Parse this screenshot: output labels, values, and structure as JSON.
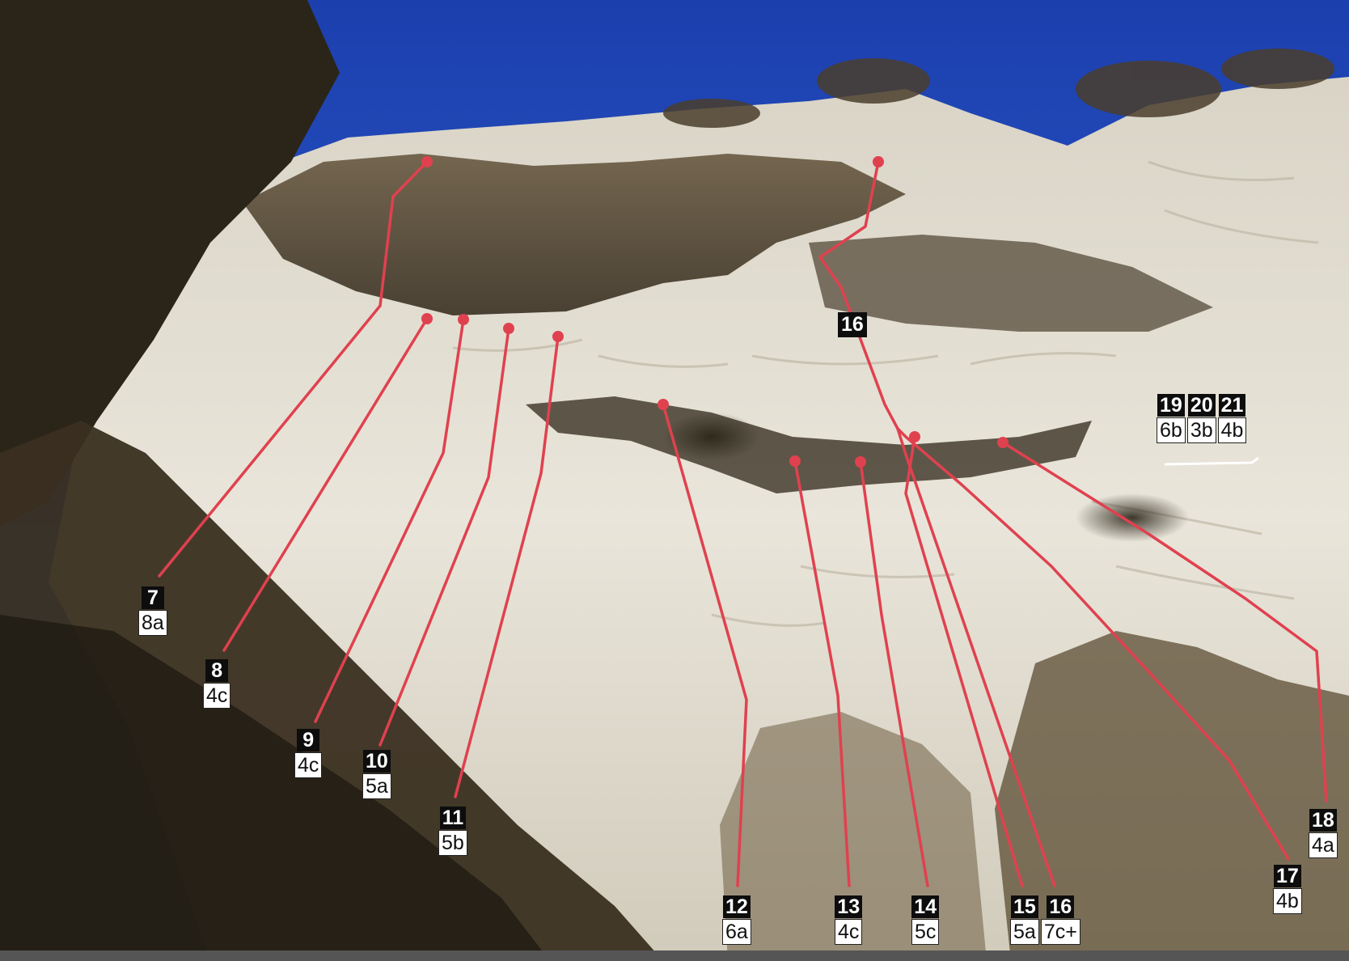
{
  "route_color": "#e0414f",
  "routes": [
    {
      "id": "route-7",
      "number": "7",
      "grade": "8a"
    },
    {
      "id": "route-8",
      "number": "8",
      "grade": "4c"
    },
    {
      "id": "route-9",
      "number": "9",
      "grade": "4c"
    },
    {
      "id": "route-10",
      "number": "10",
      "grade": "5a"
    },
    {
      "id": "route-11",
      "number": "11",
      "grade": "5b"
    },
    {
      "id": "route-12",
      "number": "12",
      "grade": "6a"
    },
    {
      "id": "route-13",
      "number": "13",
      "grade": "4c"
    },
    {
      "id": "route-14",
      "number": "14",
      "grade": "5c"
    },
    {
      "id": "route-15",
      "number": "15",
      "grade": "5a"
    },
    {
      "id": "route-16",
      "number": "16",
      "grade": "7c+"
    },
    {
      "id": "route-17",
      "number": "17",
      "grade": "4b"
    },
    {
      "id": "route-18",
      "number": "18",
      "grade": "4a"
    },
    {
      "id": "route-19",
      "number": "19",
      "grade": "6b"
    },
    {
      "id": "route-20",
      "number": "20",
      "grade": "3b"
    },
    {
      "id": "route-21",
      "number": "21",
      "grade": "4b"
    }
  ],
  "mid_route_marker": "16"
}
